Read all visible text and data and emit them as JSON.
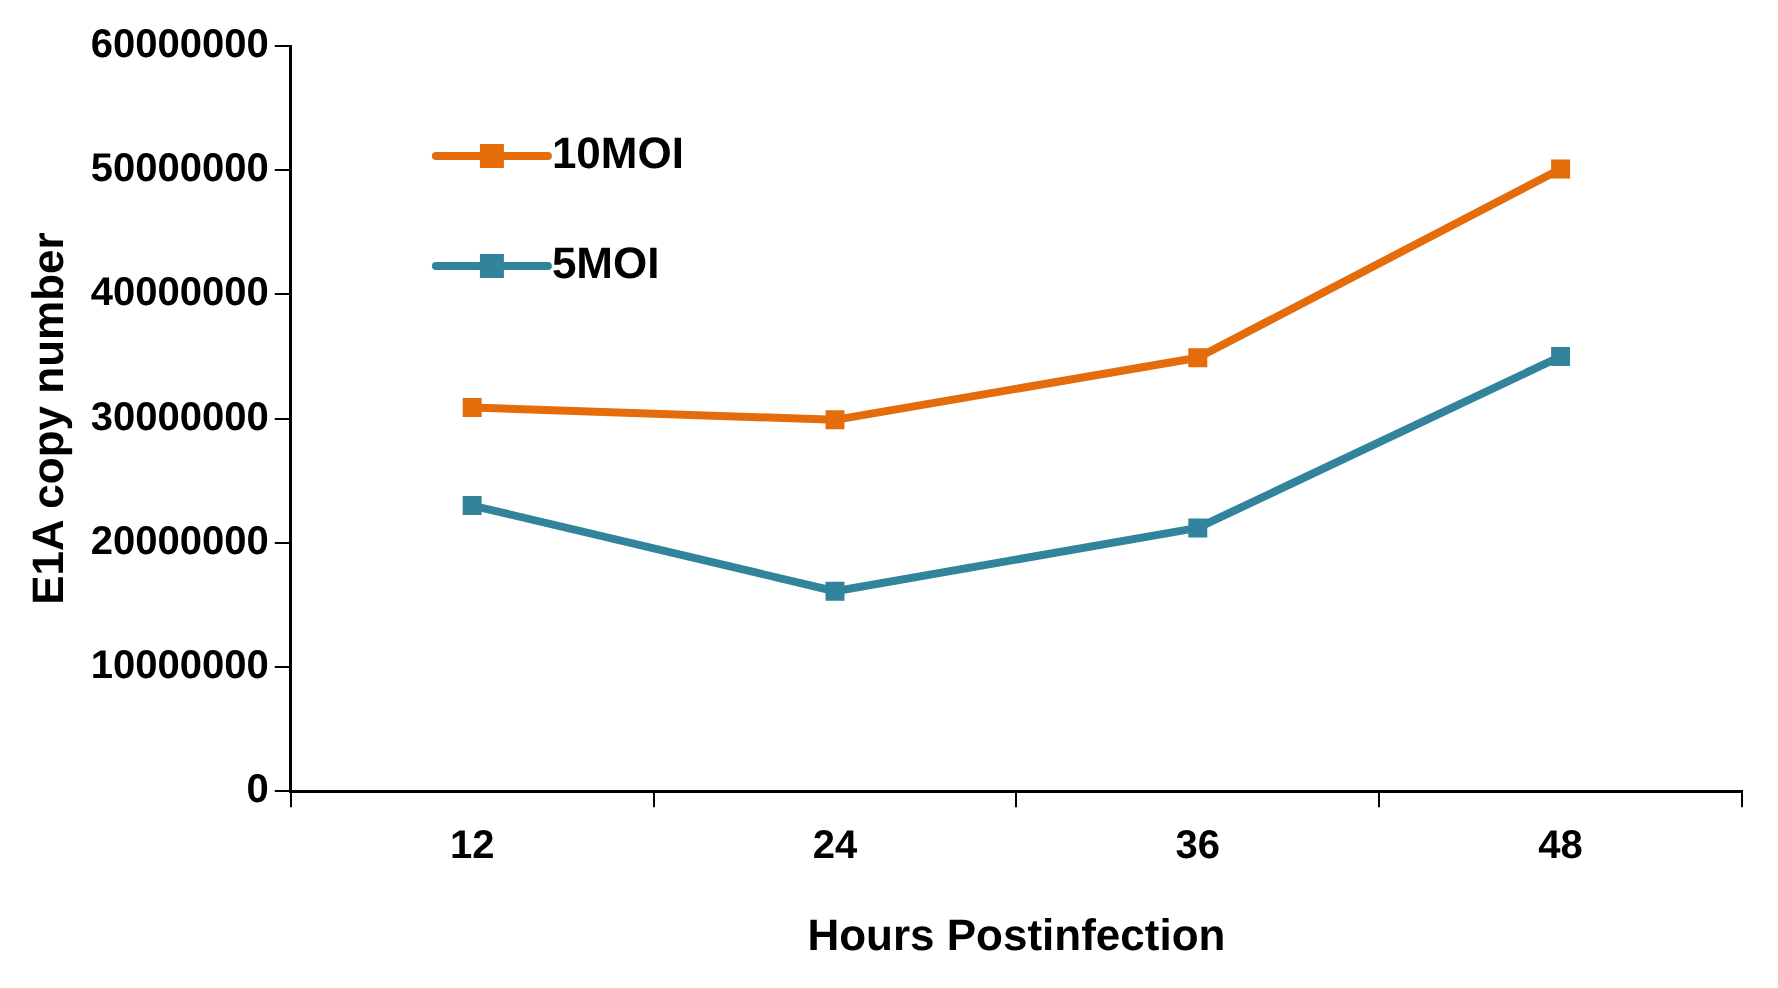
{
  "chart_data": {
    "type": "line",
    "xlabel": "Hours Postinfection",
    "ylabel": "E1A copy number",
    "categories": [
      "12",
      "24",
      "36",
      "48"
    ],
    "series": [
      {
        "name": "10MOI",
        "color": "#e46c0a",
        "values": [
          30900000,
          29900000,
          34900000,
          50100000
        ]
      },
      {
        "name": "5MOI",
        "color": "#31849b",
        "values": [
          23000000,
          16100000,
          21200000,
          35000000
        ]
      }
    ],
    "ylim": [
      0,
      60000000
    ],
    "yticks": [
      0,
      10000000,
      20000000,
      30000000,
      40000000,
      50000000,
      60000000
    ],
    "grid": false,
    "legend": "top left",
    "marker": "square",
    "line_style": "solid"
  }
}
